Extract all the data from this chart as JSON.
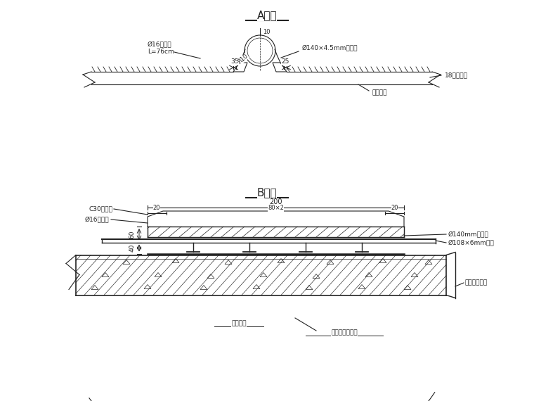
{
  "title_A": "A大样",
  "title_B": "B大样",
  "line_color": "#222222",
  "label_A_bolt": "Ø16固定锅\nL=76cm",
  "label_A_pipe": "Ø140×4.5mm孔口管",
  "label_A_steel": "18号工字钐",
  "label_A_weld": "双面焊接",
  "label_A_dim1": "35",
  "label_A_dim2": "25",
  "label_A_R": "R10",
  "label_A_top": "10",
  "label_B_concrete": "C30混护浦",
  "label_B_bolt": "Ø16固定锅",
  "label_B_pipe1": "Ø140mm孔口管",
  "label_B_pipe2": "Ø108×6mm锂管",
  "label_B_primary": "隔洞初期支护",
  "label_B_lining": "明洞衬研",
  "label_B_tunnel_lining": "隔洞钟筋混衬研",
  "label_B_dim200": "200",
  "label_B_dim80x2": "80×2",
  "label_B_dim20L": "20",
  "label_B_dim20R": "20",
  "label_B_dim60": "60",
  "label_B_dim40": "40"
}
